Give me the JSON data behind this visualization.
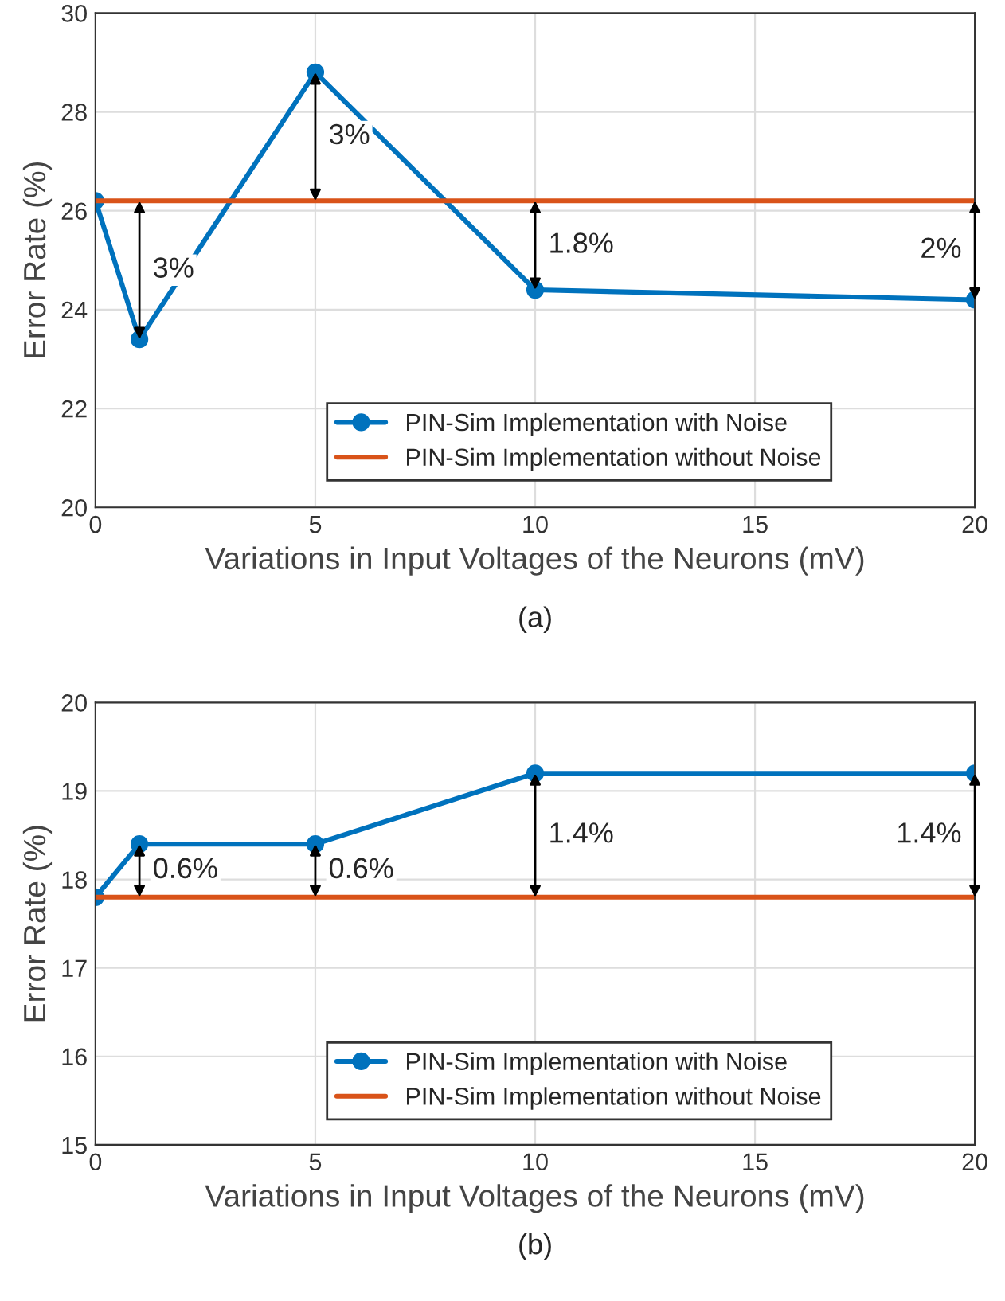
{
  "chart_data": [
    {
      "type": "line",
      "xlabel": "Variations in Input Voltages of the Neurons (mV)",
      "ylabel": "Error Rate (%)",
      "xlim": [
        0,
        20
      ],
      "xticks": [
        0,
        5,
        10,
        15,
        20
      ],
      "ylim": [
        20,
        30
      ],
      "yticks": [
        20,
        22,
        24,
        26,
        28,
        30
      ],
      "grid": true,
      "legend": "bottom",
      "series": [
        {
          "name": "PIN-Sim Implementation with Noise",
          "color": "#0072bd",
          "marker": "circle",
          "x": [
            0,
            1,
            5,
            10,
            20
          ],
          "values": [
            26.2,
            23.4,
            28.8,
            24.4,
            24.2
          ]
        },
        {
          "name": "PIN-Sim Implementation without Noise",
          "color": "#d95319",
          "marker": "none",
          "x": [
            0,
            20
          ],
          "values": [
            26.2,
            26.2
          ]
        }
      ],
      "annotations": [
        {
          "text": "3%",
          "x": 1,
          "y": 23.4
        },
        {
          "text": "3%",
          "x": 5,
          "y": 28.8
        },
        {
          "text": "1.8%",
          "x": 10,
          "y": 24.4
        },
        {
          "text": "2%",
          "x": 20,
          "y": 24.2
        },
        "(a)"
      ]
    },
    {
      "type": "line",
      "xlabel": "Variations in Input Voltages of the Neurons (mV)",
      "ylabel": "Error Rate (%)",
      "xlim": [
        0,
        20
      ],
      "xticks": [
        0,
        5,
        10,
        15,
        20
      ],
      "ylim": [
        15,
        20
      ],
      "yticks": [
        15,
        16,
        17,
        18,
        19,
        20
      ],
      "grid": true,
      "legend": "bottom",
      "series": [
        {
          "name": "PIN-Sim Implementation with Noise",
          "color": "#0072bd",
          "marker": "circle",
          "x": [
            0,
            1,
            5,
            10,
            20
          ],
          "values": [
            17.8,
            18.4,
            18.4,
            19.2,
            19.2
          ]
        },
        {
          "name": "PIN-Sim Implementation without Noise",
          "color": "#d95319",
          "marker": "none",
          "x": [
            0,
            20
          ],
          "values": [
            17.8,
            17.8
          ]
        }
      ],
      "annotations": [
        {
          "text": "0.6%",
          "x": 1,
          "y": 18.4
        },
        {
          "text": "0.6%",
          "x": 5,
          "y": 18.4
        },
        {
          "text": "1.4%",
          "x": 10,
          "y": 19.2
        },
        {
          "text": "1.4%",
          "x": 20,
          "y": 19.2
        },
        "(b)"
      ]
    }
  ]
}
